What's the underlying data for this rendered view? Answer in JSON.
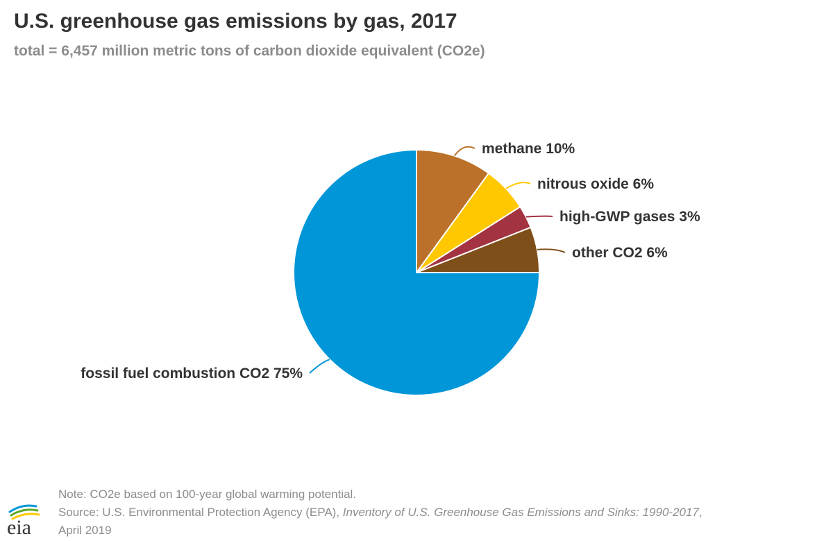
{
  "header": {
    "title": "U.S. greenhouse gas emissions by gas, 2017",
    "subtitle": "total = 6,457 million metric tons of carbon dioxide equivalent (CO2e)"
  },
  "chart_data": {
    "type": "pie",
    "title": "U.S. greenhouse gas emissions by gas, 2017",
    "subtitle": "total = 6,457 million metric tons of carbon dioxide equivalent (CO2e)",
    "slices": [
      {
        "label": "methane 10%",
        "value": 10,
        "color": "#bb712a"
      },
      {
        "label": "nitrous oxide 6%",
        "value": 6,
        "color": "#ffc800"
      },
      {
        "label": "high-GWP gases 3%",
        "value": 3,
        "color": "#a33340"
      },
      {
        "label": "other CO2 6%",
        "value": 6,
        "color": "#7f4f1a"
      },
      {
        "label": "fossil fuel combustion CO2 75%",
        "value": 75,
        "color": "#0096d7"
      }
    ]
  },
  "footer": {
    "note": "Note: CO2e based on 100-year global warming potential.",
    "source_prefix": "Source: U.S. Environmental Protection Agency (EPA), ",
    "source_title": "Inventory of U.S. Greenhouse Gas Emissions and Sinks: 1990-2017",
    "source_suffix": ",",
    "source_date": "April 2019"
  },
  "logo": {
    "text": "eia",
    "colors": [
      "#0096d7",
      "#5fa829",
      "#ffc800"
    ]
  }
}
